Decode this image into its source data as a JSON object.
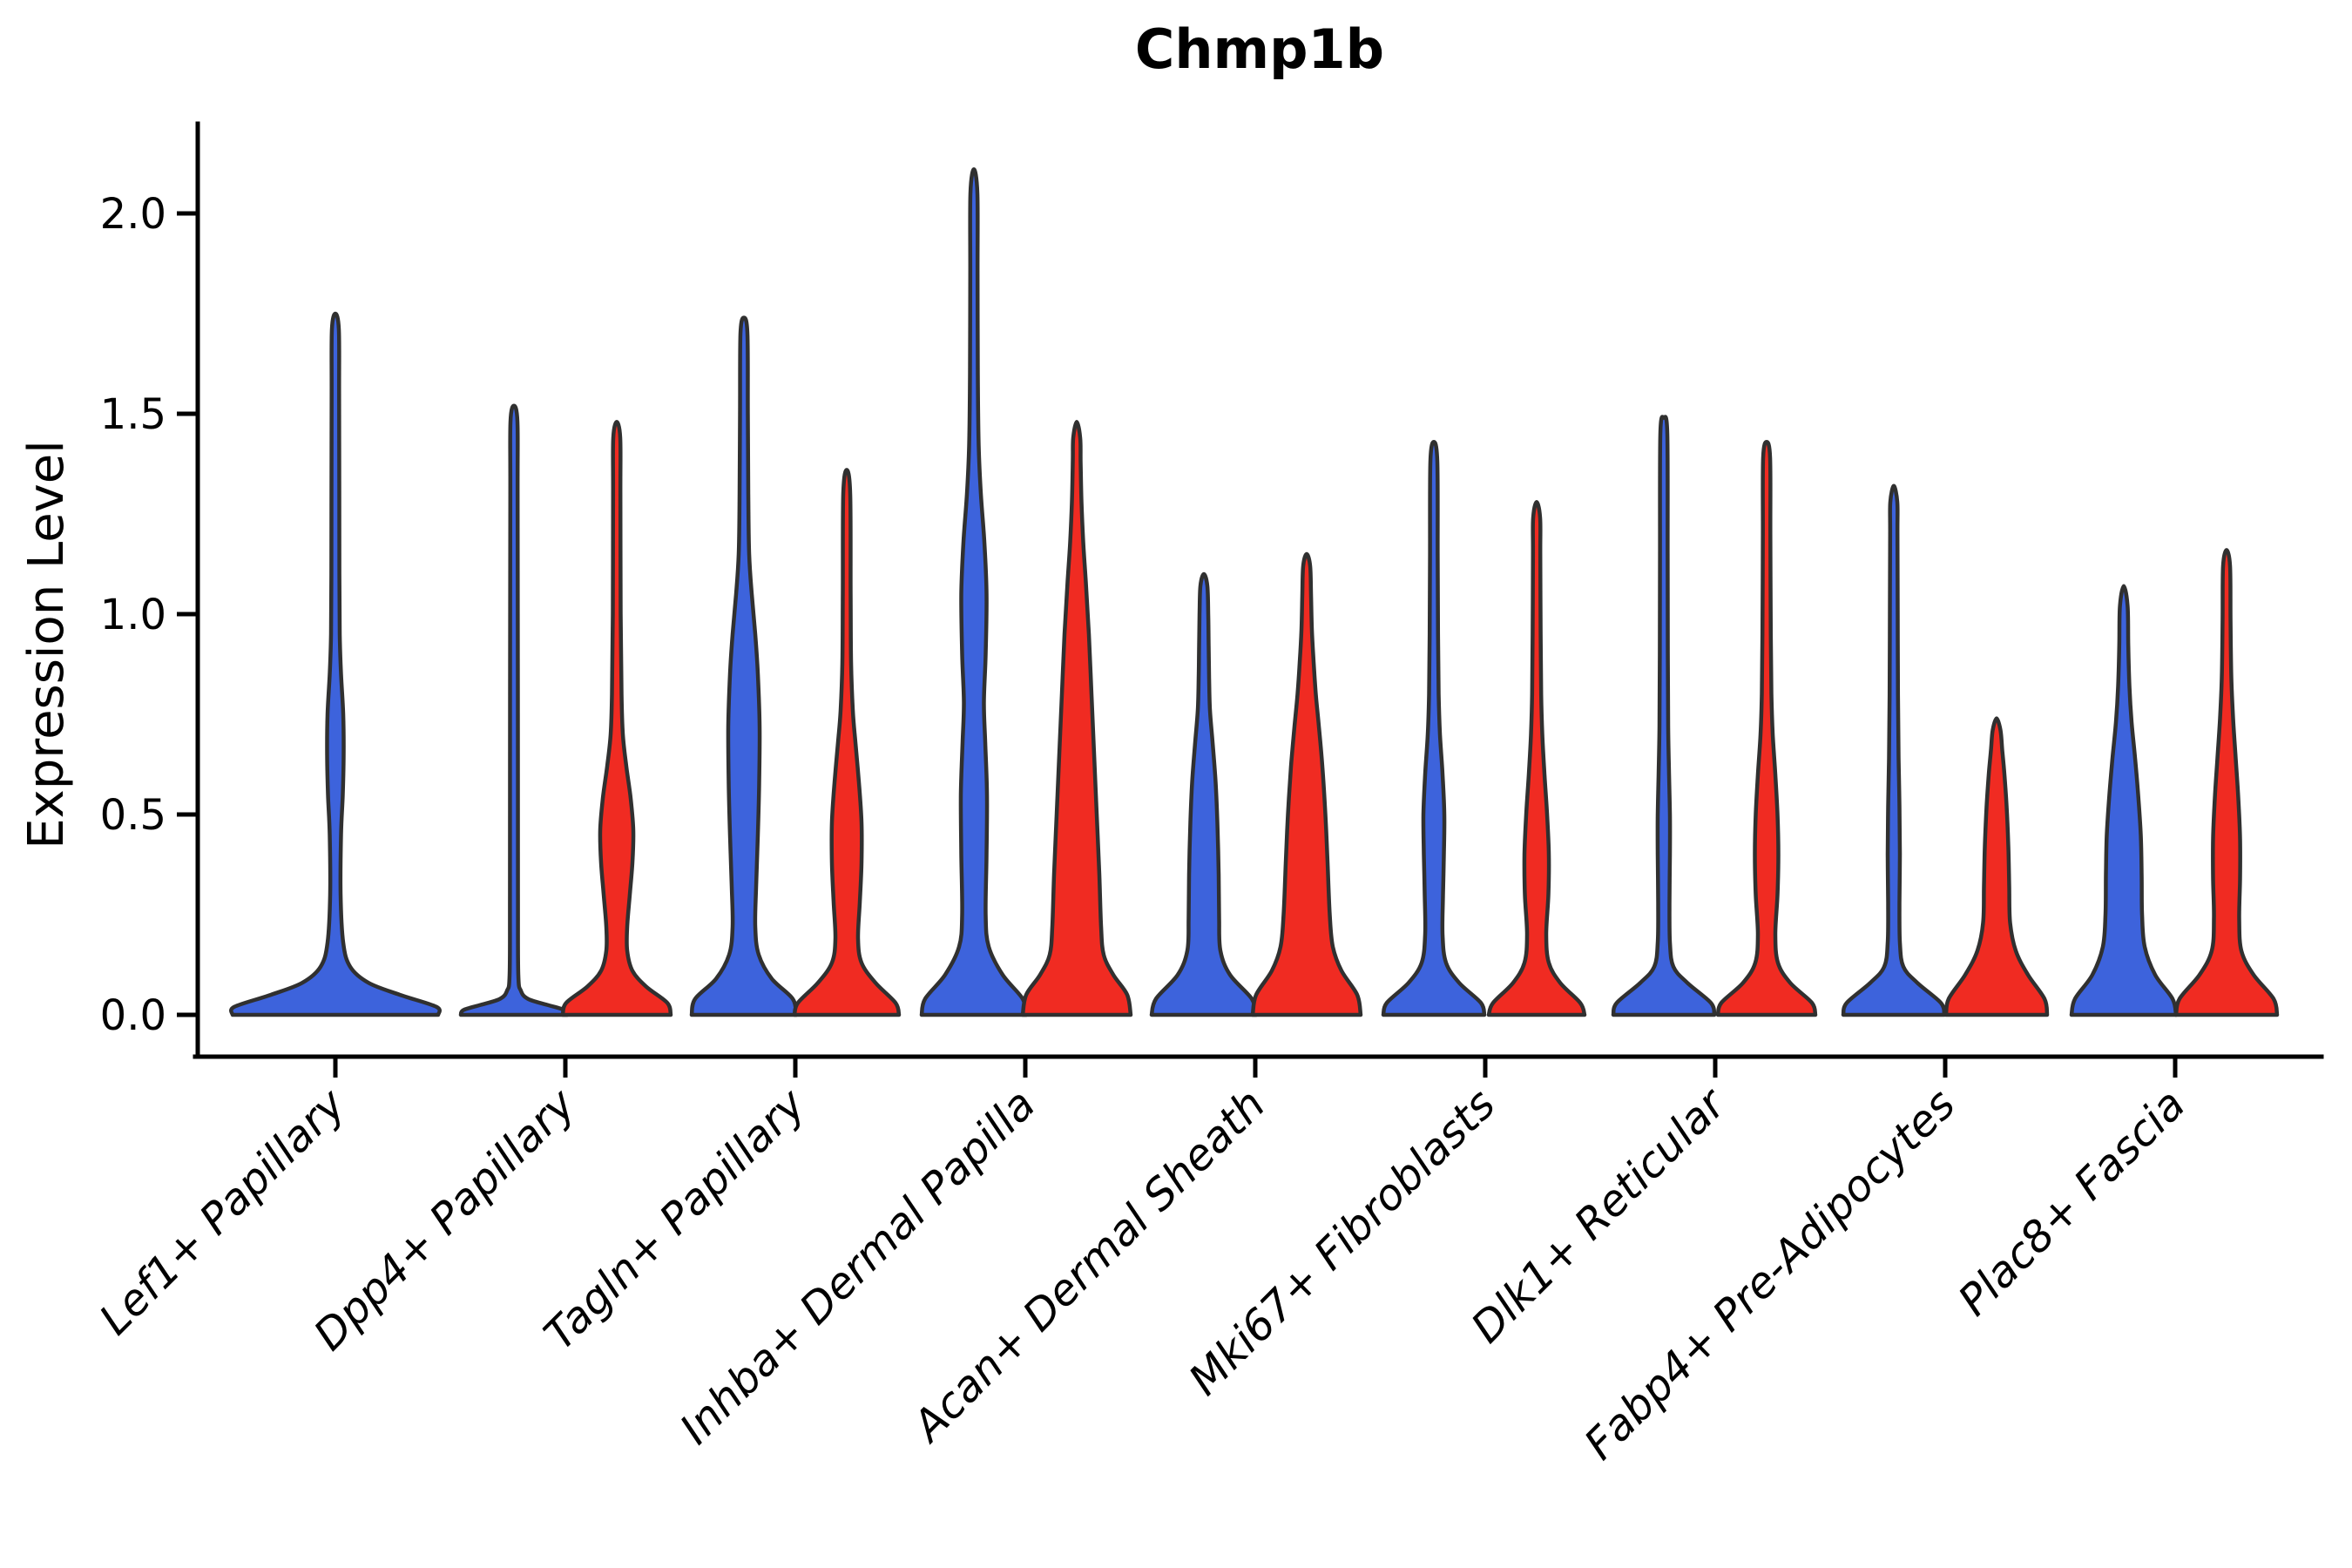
{
  "title": "Chmp1b",
  "y_axis": {
    "label": "Expression Level",
    "tick_labels": [
      "2.0",
      "1.5",
      "1.0",
      "0.5",
      "0.0"
    ],
    "tick_values": [
      2.0,
      1.5,
      1.0,
      0.5,
      0.0
    ]
  },
  "x_axis": {
    "categories": [
      "Lef1+ Papillary",
      "Dpp4+ Papillary",
      "Tagln+ Papillary",
      "Inhba+ Dermal Papilla",
      "Acan+ Dermal Sheath",
      "Mki67+ Fibroblasts",
      "Dlk1+ Reticular",
      "Fabp4+ Pre-Adipocytes",
      "Plac8+ Fascia"
    ]
  },
  "colors": {
    "blue": "#3D63DC",
    "red": "#F02B22",
    "outline": "#303030",
    "axis": "#000000"
  },
  "chart_data": {
    "type": "violin",
    "title": "Chmp1b",
    "ylabel": "Expression Level",
    "ylim": [
      -0.1,
      2.23
    ],
    "grid": false,
    "legend": "none (two hue groups shown as blue and red split violins, most expression mass at 0)",
    "categories": [
      "Lef1+ Papillary",
      "Dpp4+ Papillary",
      "Tagln+ Papillary",
      "Inhba+ Dermal Papilla",
      "Acan+ Dermal Sheath",
      "Mki67+ Fibroblasts",
      "Dlk1+ Reticular",
      "Fabp4+ Pre-Adipocytes",
      "Plac8+ Fascia"
    ],
    "series": [
      {
        "name": "group-blue",
        "color": "#3D63DC",
        "max_expression": [
          1.75,
          1.52,
          1.74,
          2.11,
          1.1,
          1.43,
          1.49,
          1.32,
          1.07
        ]
      },
      {
        "name": "group-red",
        "color": "#F02B22",
        "max_expression": [
          null,
          1.48,
          1.36,
          1.48,
          1.15,
          1.28,
          1.43,
          0.74,
          1.16
        ]
      }
    ],
    "violins": [
      {
        "category_index": 0,
        "group": "blue",
        "centered": true,
        "max": 1.75,
        "profile": [
          [
            0,
            118
          ],
          [
            0.02,
            116
          ],
          [
            0.05,
            74
          ],
          [
            0.08,
            38
          ],
          [
            0.12,
            17
          ],
          [
            0.18,
            9
          ],
          [
            0.3,
            6
          ],
          [
            0.45,
            6.5
          ],
          [
            0.55,
            8.5
          ],
          [
            0.65,
            9.5
          ],
          [
            0.75,
            9
          ],
          [
            0.85,
            6.5
          ],
          [
            0.95,
            5
          ],
          [
            1.1,
            4.6
          ],
          [
            1.3,
            4.5
          ],
          [
            1.55,
            4.3
          ],
          [
            1.71,
            4
          ],
          [
            1.75,
            0
          ]
        ]
      },
      {
        "category_index": 1,
        "group": "blue",
        "centered": false,
        "max": 1.52,
        "profile": [
          [
            0,
            61
          ],
          [
            0.012,
            58
          ],
          [
            0.025,
            38
          ],
          [
            0.04,
            16
          ],
          [
            0.06,
            8
          ],
          [
            0.1,
            5
          ],
          [
            0.3,
            4.6
          ],
          [
            0.8,
            4.5
          ],
          [
            1.3,
            4.2
          ],
          [
            1.48,
            4
          ],
          [
            1.52,
            0
          ]
        ]
      },
      {
        "category_index": 1,
        "group": "red",
        "centered": false,
        "max": 1.48,
        "profile": [
          [
            0,
            62
          ],
          [
            0.03,
            58
          ],
          [
            0.07,
            34
          ],
          [
            0.11,
            18
          ],
          [
            0.16,
            12
          ],
          [
            0.22,
            12
          ],
          [
            0.3,
            15
          ],
          [
            0.38,
            18
          ],
          [
            0.46,
            19
          ],
          [
            0.54,
            16
          ],
          [
            0.62,
            11
          ],
          [
            0.7,
            7
          ],
          [
            0.8,
            5.5
          ],
          [
            1.0,
            4.5
          ],
          [
            1.3,
            4.2
          ],
          [
            1.44,
            4
          ],
          [
            1.48,
            0
          ]
        ]
      },
      {
        "category_index": 2,
        "group": "blue",
        "centered": false,
        "max": 1.74,
        "profile": [
          [
            0,
            60
          ],
          [
            0.04,
            56
          ],
          [
            0.09,
            32
          ],
          [
            0.15,
            17
          ],
          [
            0.22,
            13
          ],
          [
            0.32,
            14
          ],
          [
            0.45,
            16
          ],
          [
            0.58,
            17.5
          ],
          [
            0.72,
            18
          ],
          [
            0.85,
            16
          ],
          [
            0.95,
            13
          ],
          [
            1.05,
            9
          ],
          [
            1.15,
            6
          ],
          [
            1.3,
            5
          ],
          [
            1.5,
            4.5
          ],
          [
            1.7,
            4
          ],
          [
            1.74,
            0
          ]
        ]
      },
      {
        "category_index": 2,
        "group": "red",
        "centered": false,
        "max": 1.36,
        "profile": [
          [
            0,
            60
          ],
          [
            0.03,
            56
          ],
          [
            0.08,
            33
          ],
          [
            0.13,
            17
          ],
          [
            0.19,
            13
          ],
          [
            0.28,
            15
          ],
          [
            0.38,
            17
          ],
          [
            0.48,
            17
          ],
          [
            0.58,
            14
          ],
          [
            0.68,
            10
          ],
          [
            0.76,
            7
          ],
          [
            0.88,
            5
          ],
          [
            1.05,
            4.5
          ],
          [
            1.3,
            4
          ],
          [
            1.36,
            0
          ]
        ]
      },
      {
        "category_index": 3,
        "group": "blue",
        "centered": false,
        "max": 2.11,
        "profile": [
          [
            0,
            60
          ],
          [
            0.04,
            56
          ],
          [
            0.1,
            33
          ],
          [
            0.17,
            17
          ],
          [
            0.25,
            13.5
          ],
          [
            0.4,
            14.5
          ],
          [
            0.55,
            15
          ],
          [
            0.68,
            13
          ],
          [
            0.78,
            11.5
          ],
          [
            0.9,
            13.5
          ],
          [
            1.05,
            14.5
          ],
          [
            1.18,
            12
          ],
          [
            1.3,
            8
          ],
          [
            1.42,
            5.5
          ],
          [
            1.6,
            4.5
          ],
          [
            1.85,
            4.2
          ],
          [
            2.05,
            4
          ],
          [
            2.11,
            0
          ]
        ]
      },
      {
        "category_index": 3,
        "group": "red",
        "centered": false,
        "max": 1.48,
        "profile": [
          [
            0,
            62
          ],
          [
            0.05,
            58
          ],
          [
            0.1,
            42
          ],
          [
            0.15,
            31
          ],
          [
            0.22,
            28
          ],
          [
            0.35,
            26
          ],
          [
            0.5,
            23
          ],
          [
            0.65,
            20
          ],
          [
            0.8,
            17
          ],
          [
            0.95,
            14
          ],
          [
            1.08,
            10.5
          ],
          [
            1.18,
            7.5
          ],
          [
            1.28,
            5.5
          ],
          [
            1.38,
            4.5
          ],
          [
            1.44,
            4
          ],
          [
            1.48,
            0
          ]
        ]
      },
      {
        "category_index": 4,
        "group": "blue",
        "centered": false,
        "max": 1.1,
        "profile": [
          [
            0,
            60
          ],
          [
            0.04,
            55
          ],
          [
            0.1,
            30
          ],
          [
            0.16,
            19
          ],
          [
            0.24,
            17.5
          ],
          [
            0.35,
            17
          ],
          [
            0.48,
            15.5
          ],
          [
            0.58,
            13.5
          ],
          [
            0.68,
            10
          ],
          [
            0.76,
            7
          ],
          [
            0.84,
            6
          ],
          [
            0.92,
            5.5
          ],
          [
            1.0,
            5
          ],
          [
            1.07,
            4
          ],
          [
            1.1,
            0
          ]
        ]
      },
      {
        "category_index": 4,
        "group": "red",
        "centered": false,
        "max": 1.15,
        "profile": [
          [
            0,
            62
          ],
          [
            0.05,
            58
          ],
          [
            0.11,
            40
          ],
          [
            0.17,
            30
          ],
          [
            0.25,
            26.5
          ],
          [
            0.38,
            24
          ],
          [
            0.5,
            21.5
          ],
          [
            0.62,
            18
          ],
          [
            0.72,
            14
          ],
          [
            0.8,
            10.5
          ],
          [
            0.88,
            8
          ],
          [
            0.96,
            6
          ],
          [
            1.05,
            5
          ],
          [
            1.12,
            4
          ],
          [
            1.15,
            0
          ]
        ]
      },
      {
        "category_index": 5,
        "group": "blue",
        "centered": false,
        "max": 1.43,
        "profile": [
          [
            0,
            58
          ],
          [
            0.03,
            54
          ],
          [
            0.08,
            29
          ],
          [
            0.13,
            14
          ],
          [
            0.2,
            10
          ],
          [
            0.3,
            10.5
          ],
          [
            0.4,
            11.5
          ],
          [
            0.5,
            12
          ],
          [
            0.6,
            10
          ],
          [
            0.7,
            7
          ],
          [
            0.8,
            5.5
          ],
          [
            0.95,
            4.8
          ],
          [
            1.15,
            4.4
          ],
          [
            1.38,
            4
          ],
          [
            1.43,
            0
          ]
        ]
      },
      {
        "category_index": 5,
        "group": "red",
        "centered": false,
        "max": 1.28,
        "profile": [
          [
            0,
            55
          ],
          [
            0.03,
            50
          ],
          [
            0.08,
            27
          ],
          [
            0.13,
            14
          ],
          [
            0.2,
            11
          ],
          [
            0.3,
            13.5
          ],
          [
            0.4,
            14
          ],
          [
            0.5,
            12
          ],
          [
            0.6,
            9
          ],
          [
            0.7,
            6.5
          ],
          [
            0.8,
            5.2
          ],
          [
            0.95,
            4.6
          ],
          [
            1.15,
            4.2
          ],
          [
            1.24,
            4
          ],
          [
            1.28,
            0
          ]
        ]
      },
      {
        "category_index": 6,
        "group": "blue",
        "centered": false,
        "max": 1.49,
        "profile": [
          [
            0,
            58
          ],
          [
            0.03,
            54
          ],
          [
            0.08,
            27
          ],
          [
            0.12,
            11
          ],
          [
            0.18,
            7
          ],
          [
            0.28,
            6.5
          ],
          [
            0.4,
            7
          ],
          [
            0.5,
            7
          ],
          [
            0.6,
            6
          ],
          [
            0.72,
            5
          ],
          [
            0.9,
            4.6
          ],
          [
            1.15,
            4.4
          ],
          [
            1.45,
            4
          ],
          [
            1.49,
            0
          ]
        ]
      },
      {
        "category_index": 6,
        "group": "red",
        "centered": false,
        "max": 1.43,
        "profile": [
          [
            0,
            56
          ],
          [
            0.03,
            52
          ],
          [
            0.08,
            27
          ],
          [
            0.13,
            13
          ],
          [
            0.2,
            10
          ],
          [
            0.3,
            12.5
          ],
          [
            0.4,
            13.5
          ],
          [
            0.5,
            12.5
          ],
          [
            0.6,
            10
          ],
          [
            0.7,
            7
          ],
          [
            0.8,
            5.5
          ],
          [
            0.95,
            4.8
          ],
          [
            1.2,
            4.3
          ],
          [
            1.39,
            4
          ],
          [
            1.43,
            0
          ]
        ]
      },
      {
        "category_index": 7,
        "group": "blue",
        "centered": false,
        "max": 1.32,
        "profile": [
          [
            0,
            58
          ],
          [
            0.03,
            54
          ],
          [
            0.08,
            27
          ],
          [
            0.12,
            11
          ],
          [
            0.18,
            7
          ],
          [
            0.28,
            6.5
          ],
          [
            0.4,
            7
          ],
          [
            0.52,
            6.5
          ],
          [
            0.64,
            5.5
          ],
          [
            0.8,
            4.8
          ],
          [
            1.0,
            4.5
          ],
          [
            1.2,
            4.2
          ],
          [
            1.28,
            4
          ],
          [
            1.32,
            0
          ]
        ]
      },
      {
        "category_index": 7,
        "group": "red",
        "centered": false,
        "max": 0.74,
        "profile": [
          [
            0,
            58
          ],
          [
            0.04,
            55
          ],
          [
            0.1,
            36
          ],
          [
            0.16,
            22
          ],
          [
            0.23,
            15.5
          ],
          [
            0.32,
            14.5
          ],
          [
            0.42,
            13.5
          ],
          [
            0.52,
            11.5
          ],
          [
            0.6,
            9
          ],
          [
            0.66,
            6.5
          ],
          [
            0.71,
            4.5
          ],
          [
            0.74,
            0
          ]
        ]
      },
      {
        "category_index": 8,
        "group": "blue",
        "centered": false,
        "max": 1.07,
        "profile": [
          [
            0,
            60
          ],
          [
            0.04,
            56
          ],
          [
            0.1,
            36
          ],
          [
            0.17,
            24
          ],
          [
            0.25,
            21
          ],
          [
            0.35,
            20.5
          ],
          [
            0.45,
            19.5
          ],
          [
            0.55,
            16.5
          ],
          [
            0.64,
            13
          ],
          [
            0.73,
            9
          ],
          [
            0.82,
            6.5
          ],
          [
            0.92,
            5.2
          ],
          [
            1.02,
            4.4
          ],
          [
            1.07,
            0
          ]
        ]
      },
      {
        "category_index": 8,
        "group": "red",
        "centered": false,
        "max": 1.16,
        "profile": [
          [
            0,
            58
          ],
          [
            0.04,
            54
          ],
          [
            0.1,
            31
          ],
          [
            0.16,
            17
          ],
          [
            0.24,
            14.5
          ],
          [
            0.34,
            15.5
          ],
          [
            0.44,
            15.5
          ],
          [
            0.54,
            13.5
          ],
          [
            0.64,
            10.5
          ],
          [
            0.74,
            7.5
          ],
          [
            0.84,
            5.5
          ],
          [
            0.98,
            4.6
          ],
          [
            1.12,
            4
          ],
          [
            1.16,
            0
          ]
        ]
      }
    ]
  }
}
